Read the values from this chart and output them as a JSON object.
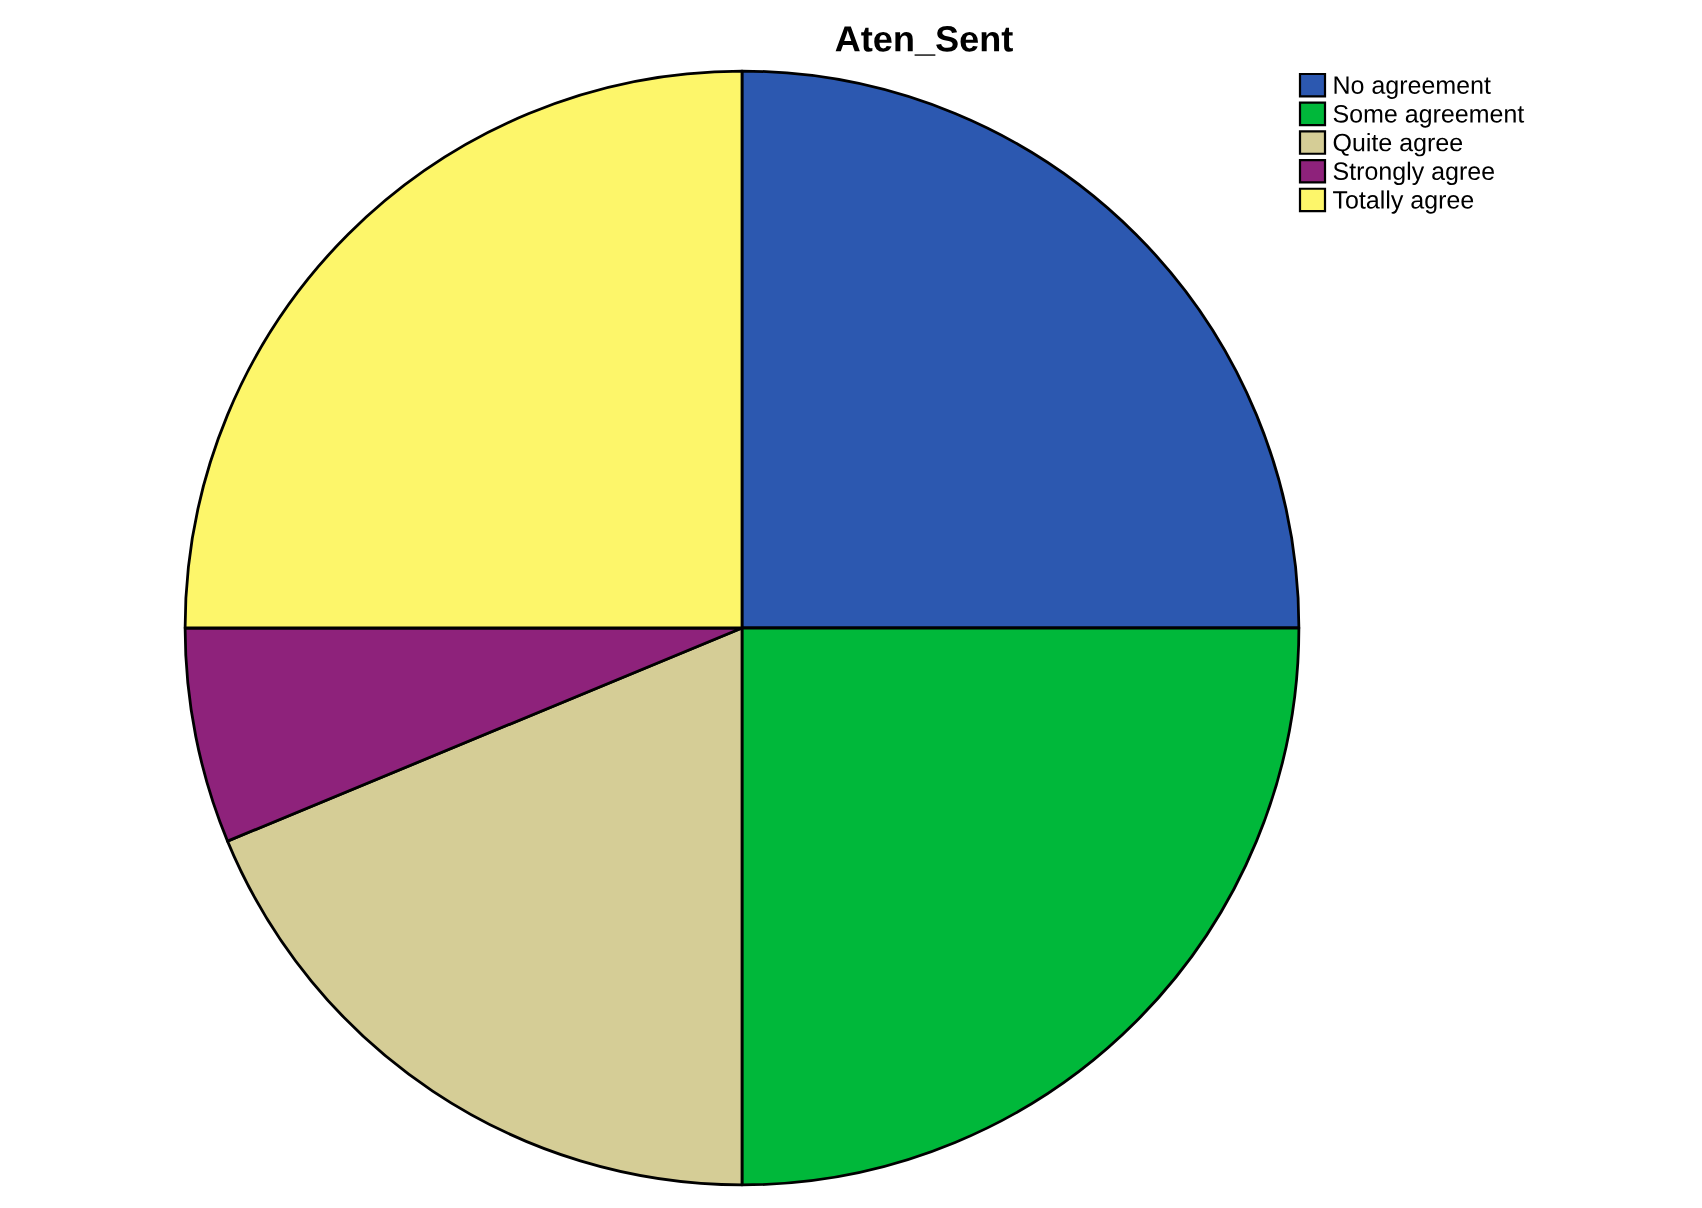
{
  "chart_data": {
    "type": "pie",
    "title": "Aten_Sent",
    "categories": [
      "No agreement",
      "Some agreement",
      "Quite agree",
      "Strongly agree",
      "Totally agree"
    ],
    "values": [
      25,
      25,
      18.75,
      6.25,
      25
    ],
    "colors": [
      "#2c58b0",
      "#00b83a",
      "#d5cd96",
      "#8e227b",
      "#fdf66a"
    ],
    "legend": "top right"
  }
}
